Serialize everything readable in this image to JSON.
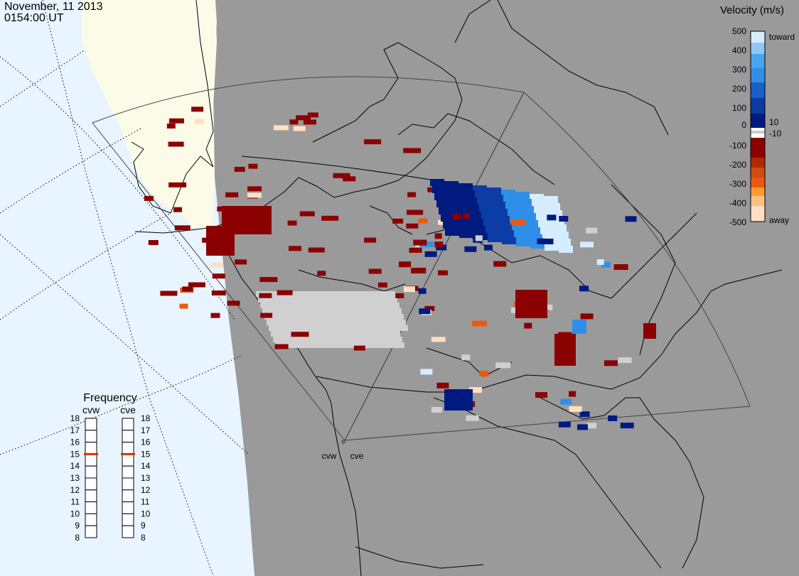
{
  "header": {
    "date": "November, 11 2013",
    "time": "0154:00 UT"
  },
  "colorbar": {
    "title": "Velocity (m/s)",
    "tick_labels": [
      "500",
      "400",
      "300",
      "200",
      "100",
      "10",
      "0",
      "-10",
      "-100",
      "-200",
      "-300",
      "-400",
      "-500"
    ],
    "toward_label": "toward",
    "away_label": "away",
    "colors": {
      "toward_strong": "#d6ecff",
      "toward_mid": "#2f8fe8",
      "toward_weak": "#001a80",
      "away_weak": "#8b0000",
      "away_mid": "#e85a10",
      "away_strong": "#ffe0c0",
      "ground_scatter": "#d0d0d0"
    }
  },
  "radars": [
    "cvw",
    "cve"
  ],
  "frequency_panel": {
    "title": "Frequency",
    "radars": [
      "cvw",
      "cve"
    ],
    "scale": [
      "18",
      "17",
      "16",
      "15",
      "14",
      "13",
      "12",
      "11",
      "10",
      "9",
      "8"
    ],
    "current_mhz": {
      "cvw": 15,
      "cve": 15
    },
    "marker_color": "#e03000"
  },
  "map_colors": {
    "night": "#9a9a9a",
    "day_ocean": "#e8f4ff",
    "day_land": "#fbfbe8",
    "coast": "#000000",
    "fov": "#444444"
  }
}
